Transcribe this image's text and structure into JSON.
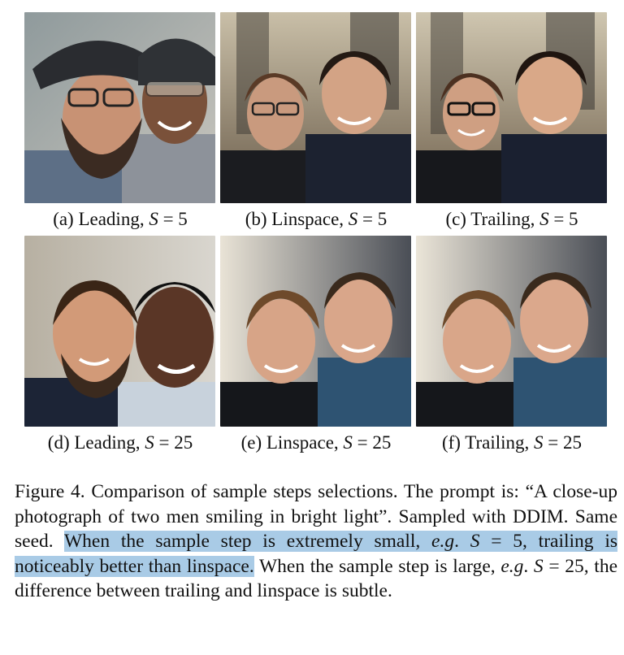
{
  "figure": {
    "panels": [
      {
        "id": "a",
        "label": "(a) Leading, ",
        "var": "S",
        "eq": " = 5",
        "image": "photo-two-men-helmets"
      },
      {
        "id": "b",
        "label": "(b) Linspace, ",
        "var": "S",
        "eq": " = 5",
        "image": "photo-two-men-office"
      },
      {
        "id": "c",
        "label": "(c) Trailing, ",
        "var": "S",
        "eq": " = 5",
        "image": "photo-two-men-office-sharper"
      },
      {
        "id": "d",
        "label": "(d) Leading, ",
        "var": "S",
        "eq": " = 25",
        "image": "photo-two-men-closeup"
      },
      {
        "id": "e",
        "label": "(e) Linspace, ",
        "var": "S",
        "eq": " = 25",
        "image": "photo-two-men-smiling"
      },
      {
        "id": "f",
        "label": "(f) Trailing, ",
        "var": "S",
        "eq": " = 25",
        "image": "photo-two-men-smiling"
      }
    ],
    "caption": {
      "part1": "Figure 4. Comparison of sample steps selections. The prompt is: “A close-up photograph of two men smiling in bright light”. Sampled with DDIM. Same seed. ",
      "hl_a": "When the sample step is extremely small, ",
      "hl_eg": "e.g",
      "hl_b": ". ",
      "hl_s": "S",
      "hl_c": " = 5, trailing is noticeably better than linspace.",
      "part2": " When the sample step is large, ",
      "eg2": "e.g",
      "part3": ". ",
      "s2": "S",
      "part4": " = 25, the difference between trailing and linspace is subtle."
    }
  }
}
